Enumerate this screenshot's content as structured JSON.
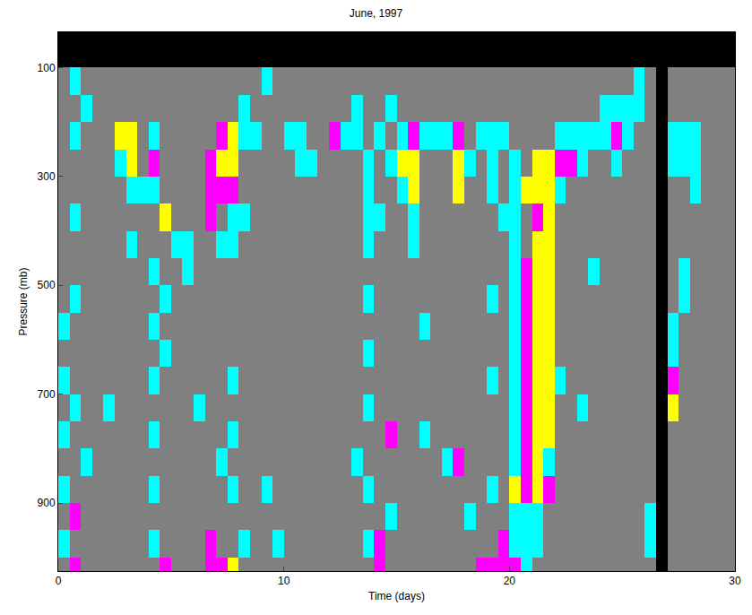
{
  "chart_data": {
    "type": "heatmap",
    "title": "June, 1997",
    "x_label": "Time (days)",
    "y_label": "Pressure (mb)",
    "xlim": [
      0,
      30
    ],
    "ylim": [
      1025,
      35
    ],
    "xticks": [
      0,
      10,
      20,
      30
    ],
    "yticks": [
      100,
      300,
      500,
      700,
      900
    ],
    "colors": [
      "#808080",
      "#00ffff",
      "#ff00ff",
      "#ffff00",
      "#000000"
    ],
    "x_edges": [
      0,
      0.5,
      1,
      1.5,
      2,
      2.5,
      3,
      3.5,
      4,
      4.5,
      5,
      5.5,
      6,
      6.5,
      7,
      7.5,
      8,
      8.5,
      9,
      9.5,
      10,
      10.5,
      11,
      11.5,
      12,
      12.5,
      13,
      13.5,
      14,
      14.5,
      15,
      15.5,
      16,
      16.5,
      17,
      17.5,
      18,
      18.5,
      19,
      19.5,
      20,
      20.5,
      21,
      21.5,
      22,
      22.5,
      23,
      23.5,
      24,
      24.5,
      25,
      25.5,
      26,
      26.5,
      27,
      27.5,
      28,
      28.5,
      29,
      29.5,
      30
    ],
    "y_edges": [
      35,
      100,
      150,
      200,
      250,
      300,
      350,
      400,
      450,
      500,
      550,
      600,
      650,
      700,
      750,
      800,
      850,
      900,
      950,
      1000,
      1025
    ],
    "z": [
      [
        4,
        4,
        4,
        4,
        4,
        4,
        4,
        4,
        4,
        4,
        4,
        4,
        4,
        4,
        4,
        4,
        4,
        4,
        4,
        4,
        4,
        4,
        4,
        4,
        4,
        4,
        4,
        4,
        4,
        4,
        4,
        4,
        4,
        4,
        4,
        4,
        4,
        4,
        4,
        4,
        4,
        4,
        4,
        4,
        4,
        4,
        4,
        4,
        4,
        4,
        4,
        4,
        4,
        4,
        4,
        4,
        4,
        4,
        4,
        4
      ],
      [
        0,
        1,
        0,
        0,
        0,
        0,
        0,
        0,
        0,
        0,
        0,
        0,
        0,
        0,
        0,
        0,
        0,
        0,
        1,
        0,
        0,
        0,
        0,
        0,
        0,
        0,
        0,
        0,
        0,
        0,
        0,
        0,
        0,
        0,
        0,
        0,
        0,
        0,
        0,
        0,
        0,
        0,
        0,
        0,
        0,
        0,
        0,
        0,
        0,
        0,
        0,
        1,
        0,
        4,
        0,
        0,
        0,
        0,
        0,
        0
      ],
      [
        0,
        0,
        1,
        0,
        0,
        0,
        0,
        0,
        0,
        0,
        0,
        0,
        0,
        0,
        0,
        0,
        1,
        0,
        0,
        0,
        0,
        0,
        0,
        0,
        0,
        0,
        1,
        0,
        0,
        1,
        0,
        0,
        0,
        0,
        0,
        0,
        0,
        0,
        0,
        0,
        0,
        0,
        0,
        0,
        0,
        0,
        0,
        0,
        1,
        1,
        1,
        1,
        0,
        4,
        0,
        0,
        0,
        0,
        0,
        0
      ],
      [
        0,
        1,
        0,
        0,
        0,
        3,
        3,
        0,
        1,
        0,
        0,
        0,
        0,
        0,
        2,
        3,
        1,
        1,
        0,
        0,
        1,
        1,
        0,
        0,
        2,
        1,
        1,
        0,
        1,
        0,
        1,
        2,
        1,
        1,
        1,
        2,
        0,
        1,
        1,
        1,
        0,
        0,
        0,
        0,
        1,
        1,
        1,
        1,
        1,
        2,
        1,
        0,
        0,
        4,
        1,
        1,
        1,
        0,
        0,
        0
      ],
      [
        0,
        0,
        0,
        0,
        0,
        1,
        3,
        0,
        2,
        0,
        0,
        0,
        0,
        2,
        3,
        3,
        0,
        0,
        0,
        0,
        0,
        1,
        1,
        0,
        0,
        0,
        0,
        1,
        0,
        1,
        3,
        3,
        0,
        0,
        0,
        3,
        1,
        0,
        1,
        0,
        1,
        0,
        3,
        3,
        2,
        2,
        1,
        0,
        0,
        1,
        0,
        0,
        0,
        4,
        1,
        1,
        1,
        0,
        0,
        0
      ],
      [
        0,
        0,
        0,
        0,
        0,
        0,
        1,
        1,
        1,
        0,
        0,
        0,
        0,
        2,
        2,
        2,
        0,
        0,
        0,
        0,
        0,
        0,
        0,
        0,
        0,
        0,
        0,
        1,
        0,
        0,
        1,
        3,
        0,
        0,
        0,
        3,
        0,
        0,
        1,
        0,
        1,
        3,
        3,
        3,
        1,
        0,
        0,
        0,
        0,
        0,
        0,
        0,
        0,
        4,
        0,
        0,
        1,
        0,
        0,
        0
      ],
      [
        0,
        1,
        0,
        0,
        0,
        0,
        0,
        0,
        0,
        3,
        0,
        0,
        0,
        2,
        0,
        1,
        1,
        0,
        0,
        0,
        0,
        0,
        0,
        0,
        0,
        0,
        0,
        1,
        1,
        0,
        0,
        1,
        0,
        0,
        0,
        0,
        0,
        0,
        0,
        1,
        1,
        0,
        2,
        3,
        0,
        0,
        0,
        0,
        0,
        0,
        0,
        0,
        0,
        4,
        0,
        0,
        0,
        0,
        0,
        0
      ],
      [
        0,
        0,
        0,
        0,
        0,
        0,
        1,
        0,
        0,
        0,
        1,
        1,
        0,
        0,
        1,
        1,
        0,
        0,
        0,
        0,
        0,
        0,
        0,
        0,
        0,
        0,
        0,
        1,
        0,
        0,
        0,
        1,
        0,
        0,
        0,
        0,
        0,
        0,
        0,
        0,
        1,
        0,
        3,
        3,
        0,
        0,
        0,
        0,
        0,
        0,
        0,
        0,
        0,
        4,
        0,
        0,
        0,
        0,
        0,
        0
      ],
      [
        0,
        0,
        0,
        0,
        0,
        0,
        0,
        0,
        1,
        0,
        0,
        1,
        0,
        0,
        0,
        0,
        0,
        0,
        0,
        0,
        0,
        0,
        0,
        0,
        0,
        0,
        0,
        0,
        0,
        0,
        0,
        0,
        0,
        0,
        0,
        0,
        0,
        0,
        0,
        0,
        1,
        2,
        3,
        3,
        0,
        0,
        0,
        1,
        0,
        0,
        0,
        0,
        0,
        4,
        0,
        1,
        0,
        0,
        0,
        0
      ],
      [
        0,
        1,
        0,
        0,
        0,
        0,
        0,
        0,
        0,
        1,
        0,
        0,
        0,
        0,
        0,
        0,
        0,
        0,
        0,
        0,
        0,
        0,
        0,
        0,
        0,
        0,
        0,
        1,
        0,
        0,
        0,
        0,
        0,
        0,
        0,
        0,
        0,
        0,
        1,
        0,
        1,
        2,
        3,
        3,
        0,
        0,
        0,
        0,
        0,
        0,
        0,
        0,
        0,
        4,
        0,
        1,
        0,
        0,
        0,
        0
      ],
      [
        1,
        0,
        0,
        0,
        0,
        0,
        0,
        0,
        1,
        0,
        0,
        0,
        0,
        0,
        0,
        0,
        0,
        0,
        0,
        0,
        0,
        0,
        0,
        0,
        0,
        0,
        0,
        0,
        0,
        0,
        0,
        0,
        1,
        0,
        0,
        0,
        0,
        0,
        0,
        0,
        1,
        2,
        3,
        3,
        0,
        0,
        0,
        0,
        0,
        0,
        0,
        0,
        0,
        4,
        1,
        0,
        0,
        0,
        0,
        0
      ],
      [
        0,
        0,
        0,
        0,
        0,
        0,
        0,
        0,
        0,
        1,
        0,
        0,
        0,
        0,
        0,
        0,
        0,
        0,
        0,
        0,
        0,
        0,
        0,
        0,
        0,
        0,
        0,
        1,
        0,
        0,
        0,
        0,
        0,
        0,
        0,
        0,
        0,
        0,
        0,
        0,
        1,
        2,
        3,
        3,
        0,
        0,
        0,
        0,
        0,
        0,
        0,
        0,
        0,
        4,
        1,
        0,
        0,
        0,
        0,
        0
      ],
      [
        1,
        0,
        0,
        0,
        0,
        0,
        0,
        0,
        1,
        0,
        0,
        0,
        0,
        0,
        0,
        1,
        0,
        0,
        0,
        0,
        0,
        0,
        0,
        0,
        0,
        0,
        0,
        0,
        0,
        0,
        0,
        0,
        0,
        0,
        0,
        0,
        0,
        0,
        1,
        0,
        1,
        2,
        3,
        3,
        1,
        0,
        0,
        0,
        0,
        0,
        0,
        0,
        0,
        4,
        2,
        0,
        0,
        0,
        0,
        0
      ],
      [
        0,
        1,
        0,
        0,
        1,
        0,
        0,
        0,
        0,
        0,
        0,
        0,
        1,
        0,
        0,
        0,
        0,
        0,
        0,
        0,
        0,
        0,
        0,
        0,
        0,
        0,
        0,
        1,
        0,
        0,
        0,
        0,
        0,
        0,
        0,
        0,
        0,
        0,
        0,
        0,
        1,
        2,
        3,
        3,
        0,
        0,
        1,
        0,
        0,
        0,
        0,
        0,
        0,
        4,
        3,
        0,
        0,
        0,
        0,
        0
      ],
      [
        1,
        0,
        0,
        0,
        0,
        0,
        0,
        0,
        1,
        0,
        0,
        0,
        0,
        0,
        0,
        1,
        0,
        0,
        0,
        0,
        0,
        0,
        0,
        0,
        0,
        0,
        0,
        0,
        0,
        2,
        0,
        0,
        1,
        0,
        0,
        0,
        0,
        0,
        0,
        0,
        1,
        2,
        3,
        3,
        0,
        0,
        0,
        0,
        0,
        0,
        0,
        0,
        0,
        4,
        0,
        0,
        0,
        0,
        0,
        0
      ],
      [
        0,
        0,
        1,
        0,
        0,
        0,
        0,
        0,
        0,
        0,
        0,
        0,
        0,
        0,
        1,
        0,
        0,
        0,
        0,
        0,
        0,
        0,
        0,
        0,
        0,
        0,
        1,
        0,
        0,
        0,
        0,
        0,
        0,
        0,
        1,
        2,
        0,
        0,
        0,
        0,
        1,
        2,
        3,
        1,
        0,
        0,
        0,
        0,
        0,
        0,
        0,
        0,
        0,
        4,
        0,
        0,
        0,
        0,
        0,
        0
      ],
      [
        1,
        0,
        0,
        0,
        0,
        0,
        0,
        0,
        1,
        0,
        0,
        0,
        0,
        0,
        0,
        1,
        0,
        0,
        1,
        0,
        0,
        0,
        0,
        0,
        0,
        0,
        0,
        1,
        0,
        0,
        0,
        0,
        0,
        0,
        0,
        0,
        0,
        0,
        1,
        0,
        3,
        2,
        3,
        2,
        0,
        0,
        0,
        0,
        0,
        0,
        0,
        0,
        0,
        4,
        0,
        0,
        0,
        0,
        0,
        0
      ],
      [
        0,
        2,
        0,
        0,
        0,
        0,
        0,
        0,
        0,
        0,
        0,
        0,
        0,
        0,
        0,
        0,
        0,
        0,
        0,
        0,
        0,
        0,
        0,
        0,
        0,
        0,
        0,
        0,
        0,
        1,
        0,
        0,
        0,
        0,
        0,
        0,
        1,
        0,
        0,
        0,
        1,
        1,
        1,
        0,
        0,
        0,
        0,
        0,
        0,
        0,
        0,
        0,
        1,
        4,
        0,
        0,
        0,
        0,
        0,
        0
      ],
      [
        1,
        0,
        0,
        0,
        0,
        0,
        0,
        0,
        1,
        0,
        0,
        0,
        0,
        2,
        0,
        0,
        1,
        0,
        0,
        1,
        0,
        0,
        0,
        0,
        0,
        0,
        0,
        1,
        2,
        0,
        0,
        0,
        0,
        0,
        0,
        0,
        0,
        0,
        0,
        2,
        1,
        1,
        1,
        0,
        0,
        0,
        0,
        0,
        0,
        0,
        0,
        0,
        1,
        4,
        0,
        0,
        0,
        0,
        0,
        0
      ],
      [
        0,
        2,
        0,
        0,
        0,
        0,
        0,
        0,
        0,
        2,
        0,
        0,
        0,
        2,
        2,
        3,
        0,
        0,
        0,
        0,
        0,
        0,
        0,
        0,
        0,
        0,
        0,
        0,
        2,
        0,
        0,
        0,
        0,
        0,
        0,
        0,
        0,
        2,
        2,
        2,
        2,
        1,
        0,
        0,
        0,
        0,
        0,
        0,
        0,
        0,
        0,
        0,
        0,
        4,
        0,
        0,
        0,
        0,
        0,
        0
      ]
    ]
  }
}
